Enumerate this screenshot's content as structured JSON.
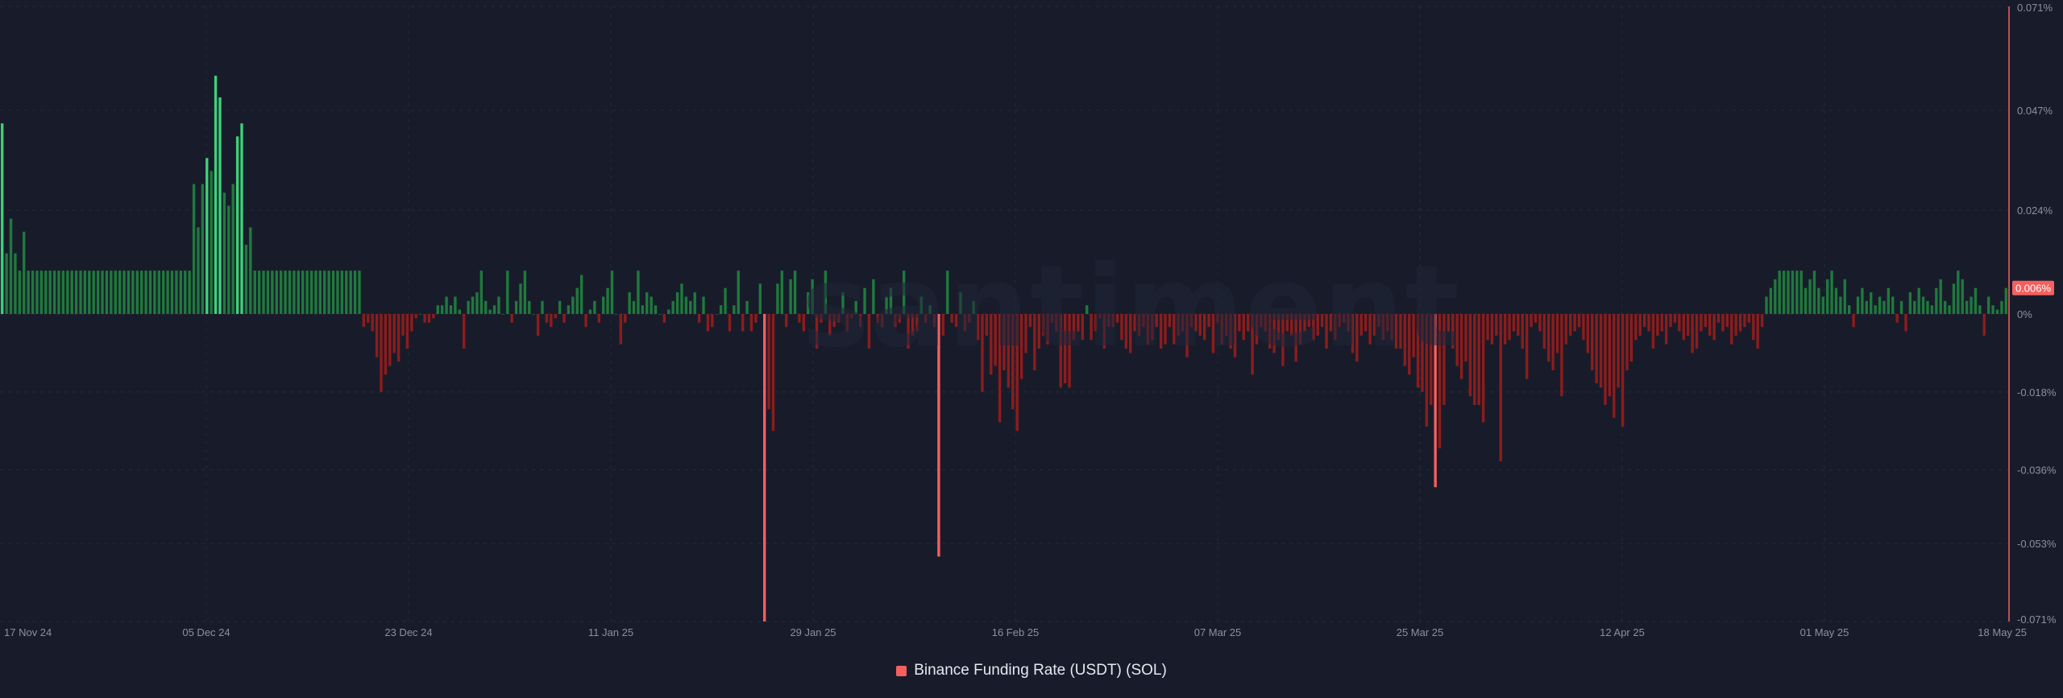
{
  "watermark": "santiment",
  "colors": {
    "background": "#181c2a",
    "positive": "#1f7a3d",
    "positive_bright": "#3ed17a",
    "negative": "#8e1c1c",
    "negative_bright": "#f4605f",
    "axis_line": "#f4605f",
    "label": "#8b90a0",
    "legend_swatch": "#f4605f",
    "last_value_badge": "#f4605f"
  },
  "legend": {
    "label": "Binance Funding Rate (USDT) (SOL)"
  },
  "chart_data": {
    "type": "bar",
    "title": "",
    "xlabel": "",
    "ylabel": "",
    "x_tick_labels": [
      "17 Nov 24",
      "05 Dec 24",
      "23 Dec 24",
      "11 Jan 25",
      "29 Jan 25",
      "16 Feb 25",
      "07 Mar 25",
      "25 Mar 25",
      "12 Apr 25",
      "01 May 25",
      "18 May 25"
    ],
    "y_tick_labels": [
      "0.071%",
      "0.047%",
      "0.024%",
      "0%",
      "-0.018%",
      "-0.036%",
      "-0.053%",
      "-0.071%"
    ],
    "y_ticks": [
      0.071,
      0.047,
      0.024,
      0,
      -0.018,
      -0.036,
      -0.053,
      -0.071
    ],
    "ylim": [
      -0.071,
      0.071
    ],
    "x_start": "17 Nov 24",
    "x_end": "18 May 25",
    "grid": true,
    "legend_position": "bottom-center",
    "last_value_label": "0.006%",
    "last_value": 0.006,
    "series": [
      {
        "name": "Binance Funding Rate (USDT) (SOL)",
        "unit": "%",
        "values": [
          0.044,
          0.014,
          0.022,
          0.014,
          0.01,
          0.019,
          0.01,
          0.01,
          0.01,
          0.01,
          0.01,
          0.01,
          0.01,
          0.01,
          0.01,
          0.01,
          0.01,
          0.01,
          0.01,
          0.01,
          0.01,
          0.01,
          0.01,
          0.01,
          0.01,
          0.01,
          0.01,
          0.01,
          0.01,
          0.01,
          0.01,
          0.01,
          0.01,
          0.01,
          0.01,
          0.01,
          0.01,
          0.01,
          0.01,
          0.01,
          0.01,
          0.01,
          0.01,
          0.01,
          0.03,
          0.02,
          0.03,
          0.036,
          0.033,
          0.055,
          0.05,
          0.028,
          0.025,
          0.03,
          0.041,
          0.044,
          0.016,
          0.02,
          0.01,
          0.01,
          0.01,
          0.01,
          0.01,
          0.01,
          0.01,
          0.01,
          0.01,
          0.01,
          0.01,
          0.01,
          0.01,
          0.01,
          0.01,
          0.01,
          0.01,
          0.01,
          0.01,
          0.01,
          0.01,
          0.01,
          0.01,
          0.01,
          0.01,
          -0.003,
          -0.002,
          -0.004,
          -0.01,
          -0.018,
          -0.014,
          -0.012,
          -0.009,
          -0.011,
          -0.005,
          -0.008,
          -0.004,
          -0.001,
          0.0,
          -0.002,
          -0.002,
          -0.001,
          0.002,
          0.002,
          0.004,
          0.002,
          0.004,
          0.001,
          -0.008,
          0.003,
          0.004,
          0.005,
          0.01,
          0.003,
          0.001,
          0.002,
          0.004,
          0.0,
          0.01,
          -0.002,
          0.003,
          0.007,
          0.01,
          0.003,
          0.0,
          -0.005,
          0.003,
          -0.002,
          -0.003,
          -0.001,
          0.003,
          -0.002,
          0.002,
          0.004,
          0.006,
          0.009,
          -0.003,
          0.001,
          0.003,
          -0.002,
          0.004,
          0.006,
          0.01,
          0.0,
          -0.007,
          -0.002,
          0.005,
          0.003,
          0.01,
          0.002,
          0.005,
          0.004,
          0.002,
          0.0,
          -0.002,
          0.001,
          0.003,
          0.005,
          0.007,
          0.004,
          0.003,
          0.005,
          -0.002,
          0.004,
          -0.004,
          -0.003,
          0.0,
          0.002,
          0.006,
          -0.004,
          0.002,
          0.01,
          -0.004,
          0.003,
          -0.004,
          -0.002,
          0.007,
          -0.071,
          -0.022,
          -0.027,
          0.007,
          0.01,
          -0.003,
          0.008,
          0.01,
          -0.002,
          -0.004,
          0.005,
          0.008,
          -0.008,
          -0.002,
          0.01,
          -0.005,
          -0.003,
          -0.002,
          0.005,
          -0.004,
          -0.001,
          0.003,
          -0.003,
          0.006,
          -0.008,
          0.008,
          -0.002,
          -0.003,
          0.004,
          0.006,
          -0.003,
          -0.002,
          0.01,
          -0.008,
          -0.005,
          -0.004,
          0.004,
          -0.002,
          0.002,
          -0.003,
          -0.056,
          -0.005,
          0.01,
          -0.002,
          -0.003,
          0.005,
          -0.004,
          -0.002,
          0.003,
          -0.006,
          -0.018,
          -0.005,
          -0.014,
          -0.012,
          -0.025,
          -0.013,
          -0.017,
          -0.022,
          -0.027,
          -0.015,
          -0.009,
          -0.003,
          -0.013,
          -0.008,
          -0.005,
          -0.007,
          -0.002,
          -0.004,
          -0.017,
          -0.016,
          -0.017,
          -0.006,
          -0.004,
          -0.006,
          0.002,
          -0.006,
          -0.004,
          -0.001,
          -0.008,
          -0.003,
          -0.003,
          -0.002,
          -0.006,
          -0.008,
          -0.009,
          -0.004,
          -0.005,
          -0.003,
          -0.007,
          -0.006,
          -0.003,
          -0.008,
          -0.007,
          -0.003,
          -0.007,
          -0.005,
          -0.004,
          -0.01,
          -0.003,
          -0.004,
          -0.005,
          -0.006,
          -0.003,
          -0.009,
          -0.002,
          -0.007,
          -0.005,
          -0.008,
          -0.01,
          -0.004,
          -0.006,
          -0.004,
          -0.014,
          -0.007,
          -0.003,
          -0.004,
          -0.008,
          -0.009,
          -0.006,
          -0.012,
          -0.004,
          -0.005,
          -0.011,
          -0.007,
          -0.004,
          -0.003,
          -0.006,
          -0.005,
          -0.003,
          -0.008,
          -0.004,
          -0.006,
          -0.003,
          -0.002,
          -0.004,
          -0.009,
          -0.011,
          -0.005,
          -0.004,
          -0.007,
          -0.005,
          -0.003,
          -0.006,
          -0.004,
          -0.006,
          -0.008,
          -0.008,
          -0.012,
          -0.014,
          -0.01,
          -0.017,
          -0.018,
          -0.026,
          -0.021,
          -0.04,
          -0.031,
          -0.021,
          -0.004,
          -0.008,
          -0.012,
          -0.015,
          -0.011,
          -0.019,
          -0.021,
          -0.021,
          -0.025,
          -0.006,
          -0.007,
          -0.005,
          -0.034,
          -0.007,
          -0.006,
          -0.004,
          -0.005,
          -0.008,
          -0.015,
          -0.003,
          -0.002,
          -0.004,
          -0.008,
          -0.011,
          -0.013,
          -0.009,
          -0.019,
          -0.007,
          -0.005,
          -0.004,
          -0.003,
          -0.006,
          -0.009,
          -0.013,
          -0.016,
          -0.017,
          -0.021,
          -0.019,
          -0.024,
          -0.017,
          -0.026,
          -0.013,
          -0.011,
          -0.006,
          -0.005,
          -0.003,
          -0.004,
          -0.008,
          -0.005,
          -0.004,
          -0.007,
          -0.003,
          -0.002,
          -0.004,
          -0.006,
          -0.005,
          -0.009,
          -0.008,
          -0.004,
          -0.003,
          -0.005,
          -0.006,
          -0.002,
          -0.004,
          -0.003,
          -0.007,
          -0.005,
          -0.004,
          -0.003,
          -0.002,
          -0.006,
          -0.008,
          -0.003,
          0.004,
          0.006,
          0.008,
          0.01,
          0.01,
          0.01,
          0.01,
          0.01,
          0.01,
          0.006,
          0.008,
          0.01,
          0.006,
          0.004,
          0.008,
          0.01,
          0.006,
          0.004,
          0.008,
          0.002,
          -0.003,
          0.004,
          0.006,
          0.003,
          0.005,
          0.002,
          0.004,
          0.003,
          0.006,
          0.004,
          -0.002,
          0.003,
          -0.004,
          0.005,
          0.003,
          0.006,
          0.004,
          0.003,
          0.002,
          0.006,
          0.008,
          0.003,
          0.002,
          0.007,
          0.01,
          0.008,
          0.003,
          0.004,
          0.006,
          0.002,
          -0.005,
          0.004,
          0.002,
          0.001,
          0.003,
          0.006
        ]
      }
    ]
  }
}
